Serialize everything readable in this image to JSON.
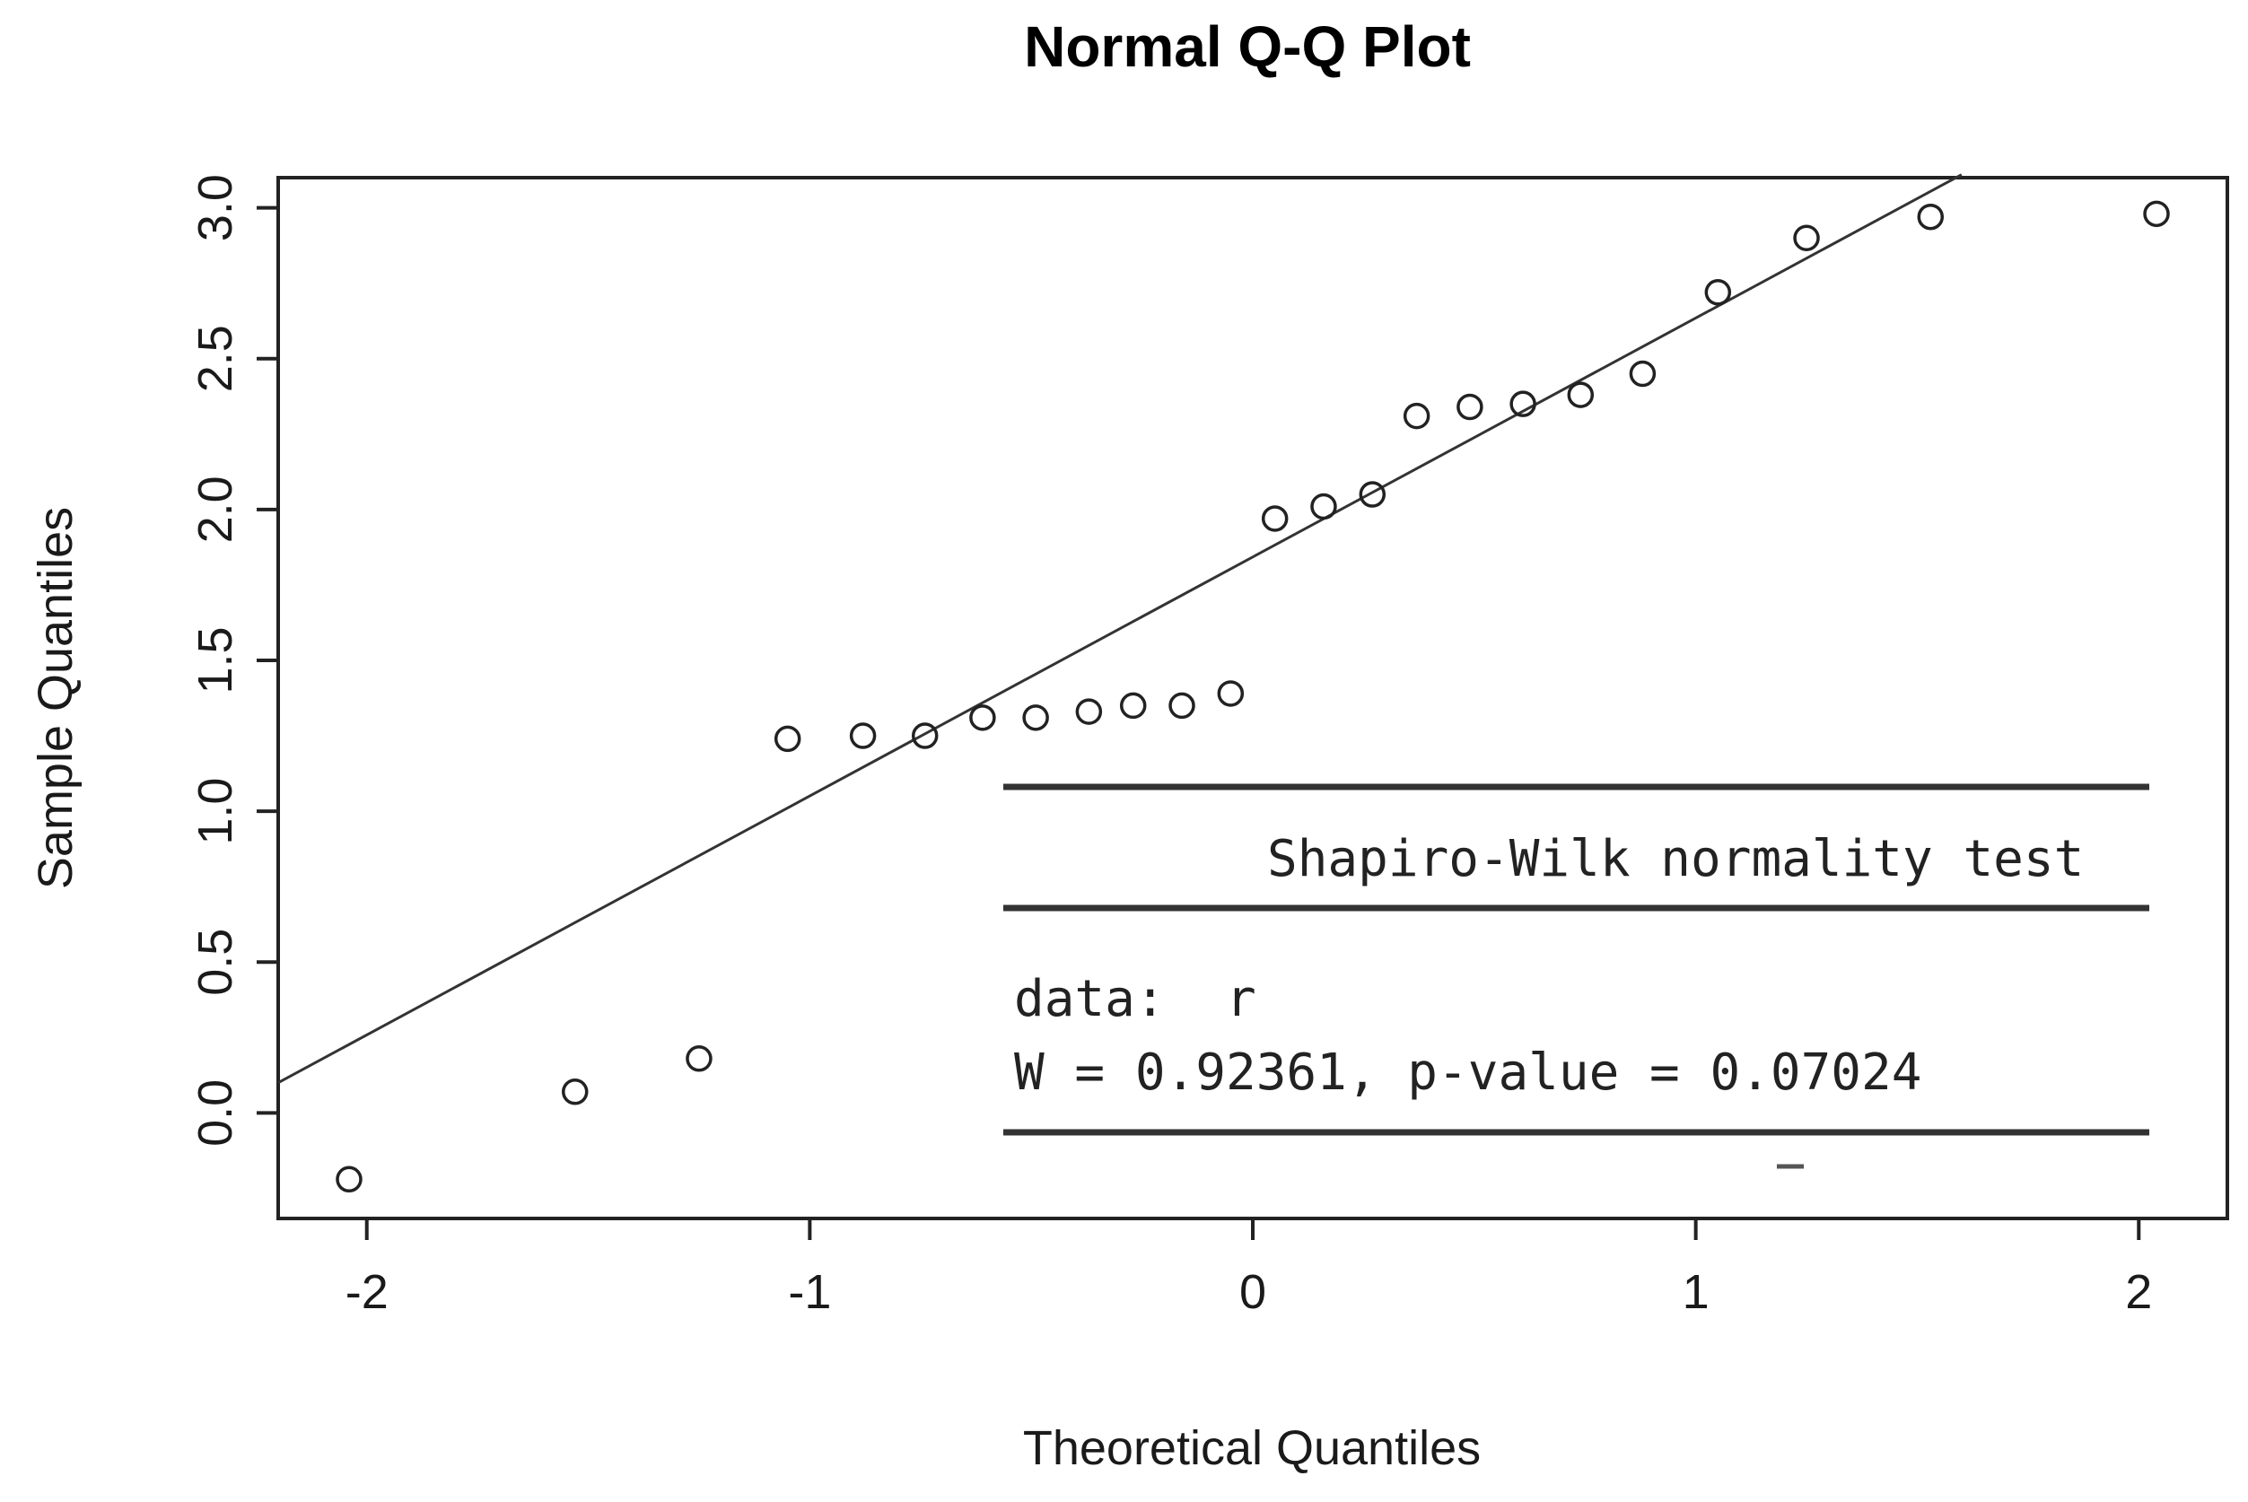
{
  "chart_data": {
    "type": "scatter",
    "title": "Normal Q-Q Plot",
    "xlabel": "Theoretical Quantiles",
    "ylabel": "Sample Quantiles",
    "xlim": [
      -2.2,
      2.2
    ],
    "ylim": [
      -0.35,
      3.1
    ],
    "x_ticks": [
      {
        "value": -2,
        "label": "-2"
      },
      {
        "value": -1,
        "label": "-1"
      },
      {
        "value": 0,
        "label": "0"
      },
      {
        "value": 1,
        "label": "1"
      },
      {
        "value": 2,
        "label": "2"
      }
    ],
    "y_ticks": [
      {
        "value": 0.0,
        "label": "0.0"
      },
      {
        "value": 0.5,
        "label": "0.5"
      },
      {
        "value": 1.0,
        "label": "1.0"
      },
      {
        "value": 1.5,
        "label": "1.5"
      },
      {
        "value": 2.0,
        "label": "2.0"
      },
      {
        "value": 2.5,
        "label": "2.5"
      },
      {
        "value": 3.0,
        "label": "3.0"
      }
    ],
    "grid": false,
    "points": {
      "x": [
        -2.04,
        -1.53,
        -1.25,
        -1.05,
        -0.88,
        -0.74,
        -0.61,
        -0.49,
        -0.37,
        -0.27,
        -0.16,
        -0.05,
        0.05,
        0.16,
        0.27,
        0.37,
        0.49,
        0.61,
        0.74,
        0.88,
        1.05,
        1.25,
        1.53,
        2.04
      ],
      "y": [
        -0.22,
        0.07,
        0.18,
        1.24,
        1.25,
        1.25,
        1.31,
        1.31,
        1.33,
        1.35,
        1.35,
        1.39,
        1.97,
        2.01,
        2.05,
        2.31,
        2.34,
        2.35,
        2.38,
        2.45,
        2.72,
        2.9,
        2.97,
        2.98
      ]
    },
    "reference_line": {
      "x": [
        -2.2,
        1.6
      ],
      "y": [
        0.1,
        3.11
      ]
    },
    "inset": {
      "title": "Shapiro-Wilk normality test",
      "data_line": "data:  r",
      "result_line": "W = 0.92361, p-value = 0.07024"
    }
  }
}
